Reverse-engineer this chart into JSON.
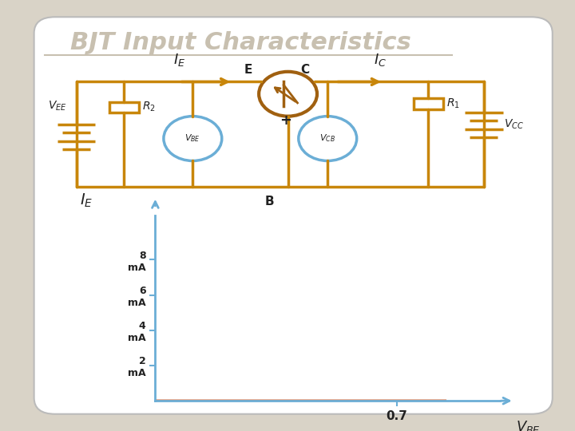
{
  "title": "BJT Input Characteristics",
  "title_fontsize": 22,
  "title_color": "#c8c0b0",
  "bg_color": "#d9d3c7",
  "panel_color": "#ffffff",
  "circuit_color": "#c8860a",
  "bjt_circle_color": "#a06010",
  "voltmeter_color": "#6baed6",
  "text_color": "#222222",
  "curve_color": "#e07040",
  "axis_color": "#6baed6",
  "tick_color": "#6baed6",
  "graph_bg": "#ffffff",
  "x_tick_label": "0.7",
  "y_ticks": [
    "2\nmA",
    "4\nmA",
    "6\nmA",
    "8\nmA"
  ],
  "y_tick_vals": [
    2,
    4,
    6,
    8
  ],
  "ylim": [
    0,
    10.5
  ],
  "xlim": [
    0,
    1.0
  ]
}
